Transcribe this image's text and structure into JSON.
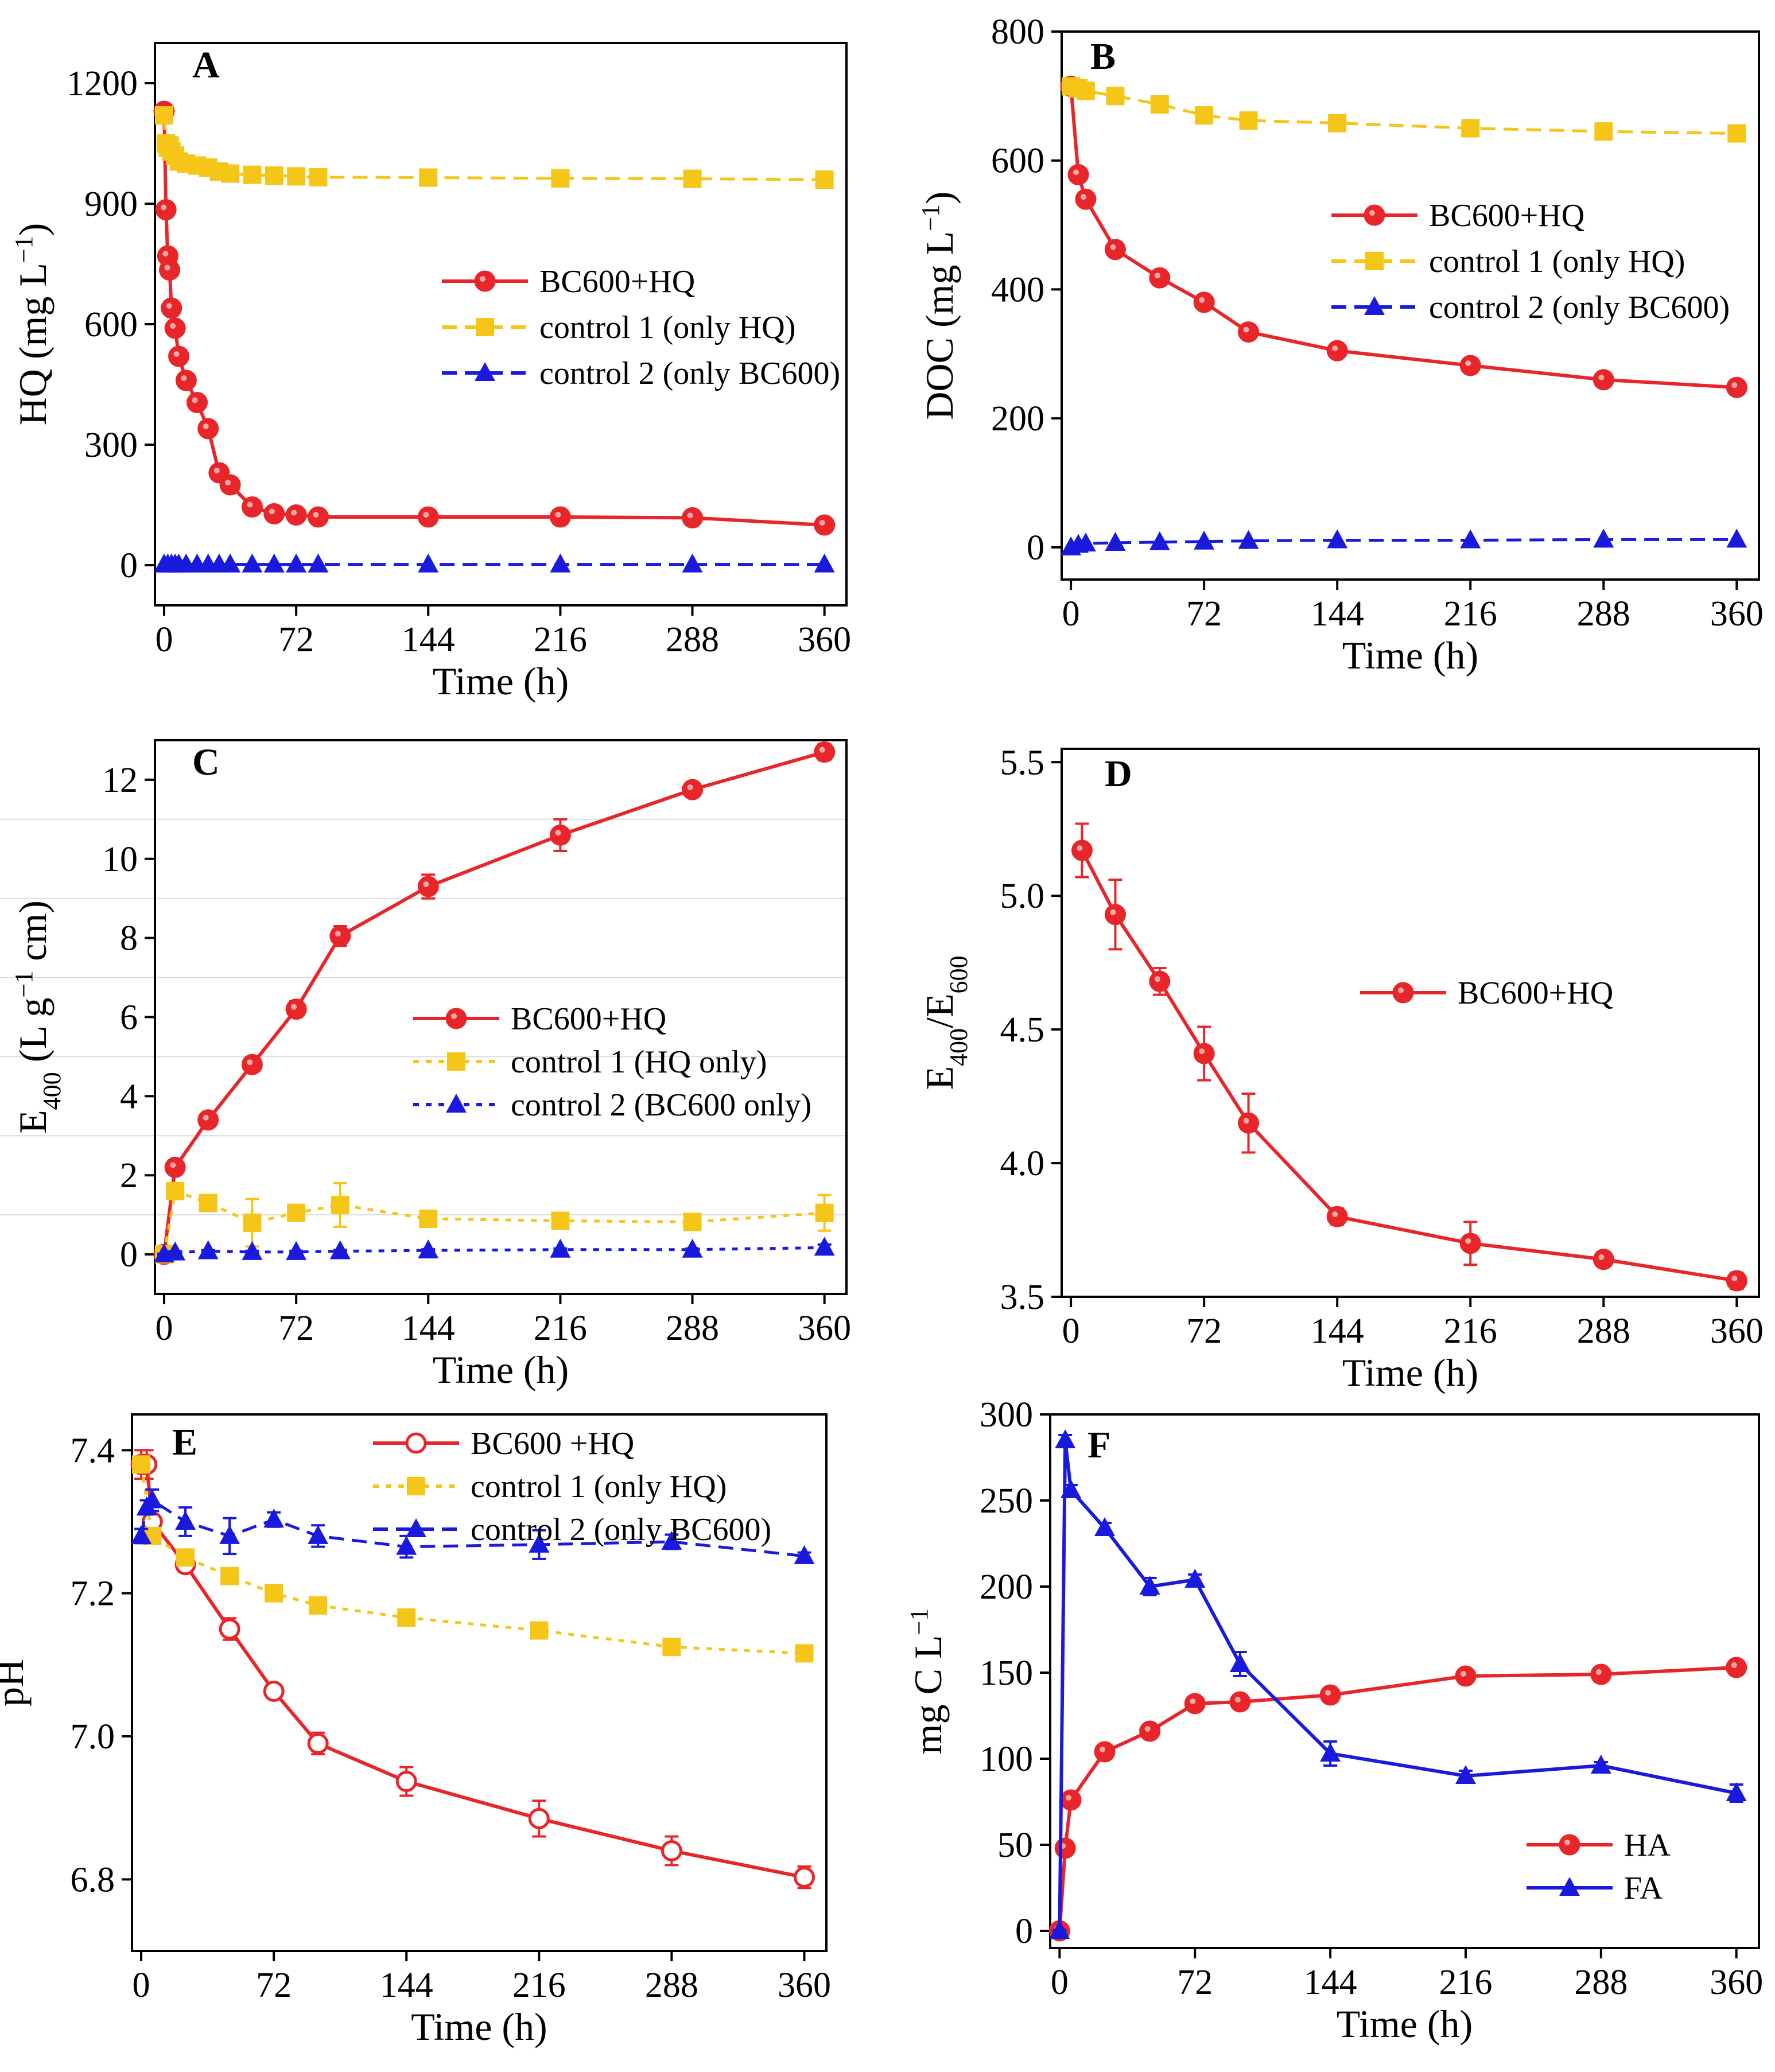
{
  "colors": {
    "red": "#e8262a",
    "yellow": "#f5c518",
    "blue": "#1a1adf"
  },
  "chart_data": [
    {
      "id": "A",
      "type": "line",
      "letter": "A",
      "xlabel": "Time (h)",
      "ylabel_parts": [
        {
          "t": "HQ  (mg L"
        },
        {
          "t": "−1",
          "sup": true
        },
        {
          "t": ")"
        }
      ],
      "xlim": [
        -5,
        372
      ],
      "ylim": [
        -100,
        1300
      ],
      "xticks": [
        0,
        72,
        144,
        216,
        288,
        360
      ],
      "yticks": [
        0,
        300,
        600,
        900,
        1200
      ],
      "series": [
        {
          "name": "BC600+HQ",
          "color": "#e8262a",
          "marker": "circle",
          "dash": "solid",
          "x": [
            0,
            1,
            2,
            3,
            4,
            6,
            8,
            12,
            18,
            24,
            30,
            36,
            48,
            60,
            72,
            84,
            144,
            216,
            288,
            360
          ],
          "y": [
            1130,
            885,
            770,
            735,
            640,
            590,
            520,
            460,
            405,
            340,
            230,
            200,
            145,
            128,
            125,
            120,
            120,
            120,
            118,
            100
          ]
        },
        {
          "name": "control 1 (only HQ)",
          "color": "#f5c518",
          "marker": "square",
          "dash": "dashed",
          "x": [
            0,
            1,
            2,
            3,
            4,
            6,
            8,
            12,
            18,
            24,
            30,
            36,
            48,
            60,
            72,
            84,
            144,
            216,
            288,
            360
          ],
          "y": [
            1120,
            1050,
            1040,
            1045,
            1030,
            1020,
            1005,
            1000,
            995,
            990,
            980,
            975,
            972,
            970,
            968,
            966,
            965,
            963,
            962,
            960
          ]
        },
        {
          "name": "control 2 (only BC600)",
          "color": "#1a1adf",
          "marker": "triangle",
          "dash": "dashed",
          "x": [
            0,
            2,
            4,
            6,
            8,
            12,
            18,
            24,
            30,
            36,
            48,
            60,
            72,
            84,
            144,
            216,
            288,
            360
          ],
          "y": [
            2,
            2,
            2,
            2,
            2,
            2,
            2,
            2,
            2,
            2,
            2,
            2,
            2,
            2,
            2,
            2,
            2,
            2
          ]
        }
      ],
      "legend": "center-right"
    },
    {
      "id": "B",
      "type": "line",
      "letter": "B",
      "xlabel": "Time (h)",
      "ylabel_parts": [
        {
          "t": "DOC  (mg L"
        },
        {
          "t": "−1",
          "sup": true
        },
        {
          "t": ")"
        }
      ],
      "xlim": [
        -5,
        372
      ],
      "ylim": [
        -50,
        800
      ],
      "xticks": [
        0,
        72,
        144,
        216,
        288,
        360
      ],
      "yticks": [
        0,
        200,
        400,
        600,
        800
      ],
      "series": [
        {
          "name": "BC600+HQ",
          "color": "#e8262a",
          "marker": "circle",
          "dash": "solid",
          "x": [
            0,
            4,
            8,
            24,
            48,
            72,
            96,
            144,
            216,
            288,
            360
          ],
          "y": [
            715,
            578,
            540,
            462,
            418,
            380,
            334,
            305,
            282,
            260,
            248
          ]
        },
        {
          "name": "control 1 (only HQ)",
          "color": "#f5c518",
          "marker": "square",
          "dash": "dashed",
          "x": [
            0,
            4,
            8,
            24,
            48,
            72,
            96,
            144,
            216,
            288,
            360
          ],
          "y": [
            715,
            712,
            708,
            700,
            687,
            670,
            662,
            658,
            650,
            645,
            642
          ]
        },
        {
          "name": "control 2 (only BC600)",
          "color": "#1a1adf",
          "marker": "triangle",
          "dash": "dashed",
          "x": [
            0,
            4,
            8,
            24,
            48,
            72,
            96,
            144,
            216,
            288,
            360
          ],
          "y": [
            0,
            4,
            6,
            7,
            8,
            9,
            10,
            11,
            11,
            12,
            12
          ]
        }
      ],
      "legend": "center-right"
    },
    {
      "id": "C",
      "type": "line",
      "letter": "C",
      "xlabel": "Time (h)",
      "ylabel_parts": [
        {
          "t": "E"
        },
        {
          "t": "400",
          "sub": true
        },
        {
          "t": " (L g"
        },
        {
          "t": "−1",
          "sup": true
        },
        {
          "t": " cm)"
        }
      ],
      "xlim": [
        -5,
        372
      ],
      "ylim": [
        -1,
        13
      ],
      "xticks": [
        0,
        72,
        144,
        216,
        288,
        360
      ],
      "yticks": [
        0,
        2,
        4,
        6,
        8,
        10,
        12
      ],
      "series": [
        {
          "name": "BC600+HQ",
          "color": "#e8262a",
          "marker": "circle",
          "dash": "solid",
          "x": [
            0,
            6,
            24,
            48,
            72,
            96,
            144,
            216,
            288,
            360
          ],
          "y": [
            0,
            2.2,
            3.4,
            4.8,
            6.2,
            8.05,
            9.3,
            10.6,
            11.75,
            12.7
          ],
          "err": [
            0.05,
            0.1,
            0.1,
            0.12,
            0.2,
            0.25,
            0.3,
            0.4,
            0.15,
            0.2
          ]
        },
        {
          "name": "control 1 (HQ only)",
          "color": "#f5c518",
          "marker": "square",
          "dash": "dotted",
          "x": [
            0,
            6,
            24,
            48,
            72,
            96,
            144,
            216,
            288,
            360
          ],
          "y": [
            0,
            1.6,
            1.3,
            0.8,
            1.05,
            1.25,
            0.9,
            0.85,
            0.82,
            1.05
          ],
          "err": [
            0.05,
            0.1,
            0.1,
            0.6,
            0.15,
            0.55,
            0.15,
            0.1,
            0.15,
            0.45
          ]
        },
        {
          "name": "control 2 (BC600 only)",
          "color": "#1a1adf",
          "marker": "triangle",
          "dash": "dotted",
          "x": [
            0,
            6,
            24,
            48,
            72,
            96,
            144,
            216,
            288,
            360
          ],
          "y": [
            0,
            0.05,
            0.08,
            0.06,
            0.06,
            0.08,
            0.1,
            0.12,
            0.12,
            0.17
          ],
          "err": [
            0.02,
            0.03,
            0.03,
            0.03,
            0.03,
            0.03,
            0.03,
            0.03,
            0.03,
            0.08
          ]
        }
      ],
      "legend": "center-right"
    },
    {
      "id": "D",
      "type": "line",
      "letter": "D",
      "xlabel": "Time (h)",
      "ylabel_parts": [
        {
          "t": "E"
        },
        {
          "t": "400",
          "sub": true
        },
        {
          "t": "/E"
        },
        {
          "t": "600",
          "sub": true
        }
      ],
      "xlim": [
        -5,
        372
      ],
      "ylim": [
        3.5,
        5.55
      ],
      "xticks": [
        0,
        72,
        144,
        216,
        288,
        360
      ],
      "yticks": [
        3.5,
        4.0,
        4.5,
        5.0,
        5.5
      ],
      "ytick_labels": [
        "3.5",
        "4.0",
        "4.5",
        "5.0",
        "5.5"
      ],
      "series": [
        {
          "name": "BC600+HQ",
          "color": "#e8262a",
          "marker": "circle",
          "dash": "solid",
          "x": [
            6,
            24,
            48,
            72,
            96,
            144,
            216,
            288,
            360
          ],
          "y": [
            5.17,
            4.93,
            4.68,
            4.41,
            4.15,
            3.8,
            3.7,
            3.64,
            3.56
          ],
          "err": [
            0.1,
            0.13,
            0.05,
            0.1,
            0.11,
            0.03,
            0.08,
            0.02,
            0.03
          ]
        }
      ],
      "legend": "center-right"
    },
    {
      "id": "E",
      "type": "line",
      "letter": "E",
      "xlabel": "Time (h)",
      "ylabel_parts": [
        {
          "t": "pH"
        }
      ],
      "xlim": [
        -5,
        372
      ],
      "ylim": [
        6.7,
        7.45
      ],
      "xticks": [
        0,
        72,
        144,
        216,
        288,
        360
      ],
      "yticks": [
        6.8,
        7.0,
        7.2,
        7.4
      ],
      "ytick_labels": [
        "6.8",
        "7.0",
        "7.2",
        "7.4"
      ],
      "series": [
        {
          "name": "BC600 +HQ",
          "color": "#e8262a",
          "marker": "circle-open",
          "dash": "solid",
          "x": [
            0,
            3,
            6,
            24,
            48,
            72,
            96,
            144,
            216,
            288,
            360
          ],
          "y": [
            7.38,
            7.38,
            7.3,
            7.24,
            7.15,
            7.063,
            6.99,
            6.937,
            6.885,
            6.84,
            6.803
          ],
          "err": [
            0.02,
            0.02,
            0.01,
            0.01,
            0.015,
            0.01,
            0.015,
            0.02,
            0.025,
            0.02,
            0.015
          ]
        },
        {
          "name": "control 1 (only HQ)",
          "color": "#f5c518",
          "marker": "square",
          "dash": "dotted",
          "x": [
            0,
            6,
            24,
            48,
            72,
            96,
            144,
            216,
            288,
            360
          ],
          "y": [
            7.38,
            7.28,
            7.25,
            7.224,
            7.2,
            7.183,
            7.166,
            7.148,
            7.125,
            7.116
          ],
          "err": [
            0.01,
            0.01,
            0.01,
            0.01,
            0.01,
            0.01,
            0.005,
            0.005,
            0.005,
            0.005
          ]
        },
        {
          "name": "control 2 (only BC600)",
          "color": "#1a1adf",
          "marker": "triangle",
          "dash": "dashed",
          "x": [
            0,
            3,
            6,
            24,
            48,
            72,
            96,
            144,
            216,
            288,
            360
          ],
          "y": [
            7.28,
            7.32,
            7.33,
            7.3,
            7.28,
            7.303,
            7.28,
            7.265,
            7.268,
            7.272,
            7.252
          ],
          "err": [
            0.01,
            0.01,
            0.015,
            0.02,
            0.025,
            0.01,
            0.015,
            0.015,
            0.02,
            0.01,
            0.005
          ]
        }
      ],
      "legend": "top-center"
    },
    {
      "id": "F",
      "type": "line",
      "letter": "F",
      "xlabel": "Time (h)",
      "ylabel_parts": [
        {
          "t": "mg C L"
        },
        {
          "t": "−1",
          "sup": true
        }
      ],
      "xlim": [
        -5,
        372
      ],
      "ylim": [
        -10,
        300
      ],
      "xticks": [
        0,
        72,
        144,
        216,
        288,
        360
      ],
      "yticks": [
        0,
        50,
        100,
        150,
        200,
        250,
        300
      ],
      "series": [
        {
          "name": "HA",
          "color": "#e8262a",
          "marker": "circle",
          "dash": "solid",
          "x": [
            0,
            3,
            6,
            24,
            48,
            72,
            96,
            144,
            216,
            288,
            360
          ],
          "y": [
            0,
            48,
            76,
            104,
            116,
            132,
            133,
            137,
            148,
            149,
            153
          ],
          "err": [
            0.5,
            3,
            3,
            2,
            2,
            2,
            2,
            2,
            3,
            3,
            2
          ]
        },
        {
          "name": "FA",
          "color": "#1a1adf",
          "marker": "triangle",
          "dash": "solid",
          "x": [
            0,
            3,
            6,
            24,
            48,
            72,
            96,
            144,
            216,
            288,
            360
          ],
          "y": [
            0,
            285,
            256,
            234,
            200,
            204,
            155,
            103,
            90,
            96,
            80
          ],
          "err": [
            0.5,
            3,
            3,
            3,
            5,
            3,
            7,
            7,
            3,
            2,
            5
          ]
        }
      ],
      "legend": "bottom-right"
    }
  ]
}
